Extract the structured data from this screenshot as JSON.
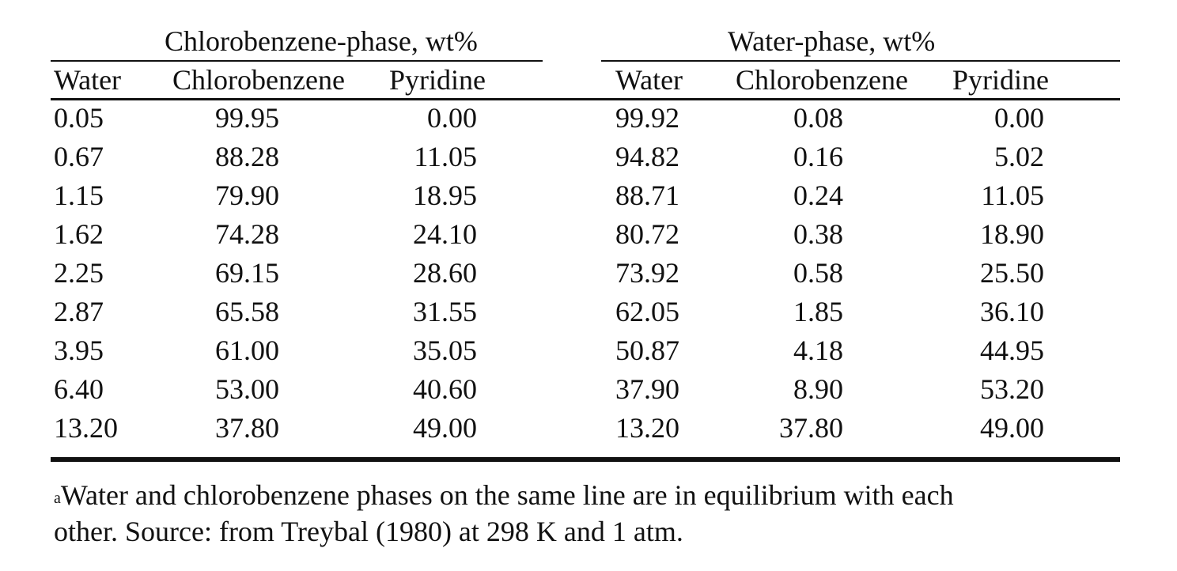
{
  "table": {
    "groups": {
      "left": "Chlorobenzene-phase, wt%",
      "right": "Water-phase, wt%"
    },
    "headers": [
      "Water",
      "Chlorobenzene",
      "Pyridine",
      "Water",
      "Chlorobenzene",
      "Pyridine"
    ],
    "rows": [
      [
        "0.05",
        "99.95",
        "0.00",
        "99.92",
        "0.08",
        "0.00"
      ],
      [
        "0.67",
        "88.28",
        "11.05",
        "94.82",
        "0.16",
        "5.02"
      ],
      [
        "1.15",
        "79.90",
        "18.95",
        "88.71",
        "0.24",
        "11.05"
      ],
      [
        "1.62",
        "74.28",
        "24.10",
        "80.72",
        "0.38",
        "18.90"
      ],
      [
        "2.25",
        "69.15",
        "28.60",
        "73.92",
        "0.58",
        "25.50"
      ],
      [
        "2.87",
        "65.58",
        "31.55",
        "62.05",
        "1.85",
        "36.10"
      ],
      [
        "3.95",
        "61.00",
        "35.05",
        "50.87",
        "4.18",
        "44.95"
      ],
      [
        "6.40",
        "53.00",
        "40.60",
        "37.90",
        "8.90",
        "53.20"
      ],
      [
        "13.20",
        "37.80",
        "49.00",
        "13.20",
        "37.80",
        "49.00"
      ]
    ]
  },
  "footnote": {
    "marker": "a",
    "line1": "Water and chlorobenzene phases on the same line are in equilibrium with each",
    "line2": "other. Source: from Treybal (1980) at 298 K and 1 atm."
  }
}
